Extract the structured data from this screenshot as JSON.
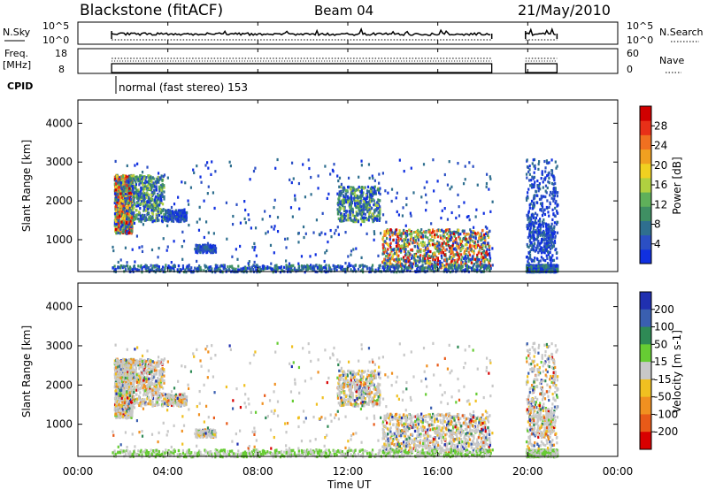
{
  "header": {
    "station": "Blackstone (fitACF)",
    "beam": "Beam 04",
    "date": "21/May/2010"
  },
  "meta_panels": {
    "nsky": {
      "label": "N.Sky",
      "ticks": [
        "10^5",
        "10^0"
      ],
      "right_ticks": [
        "10^5",
        "10^0"
      ],
      "right_label": "N.Search"
    },
    "freq": {
      "label_line1": "Freq.",
      "label_line2": "[MHz]",
      "ticks": [
        "18",
        "8"
      ],
      "right_ticks": [
        "60",
        "0"
      ],
      "right_label": "Nave"
    },
    "cpid": {
      "label": "CPID",
      "mode_text": "normal (fast stereo) 153"
    }
  },
  "chart_data": [
    {
      "type": "heatmap",
      "title": "",
      "xlabel": "Time UT",
      "ylabel": "Slant Range [km]",
      "xlim": [
        "00:00",
        "24:00"
      ],
      "ylim": [
        180,
        4600
      ],
      "x_ticks": [
        "00:00",
        "04:00",
        "08:00",
        "12:00",
        "16:00",
        "20:00",
        "00:00"
      ],
      "y_ticks": [
        1000,
        2000,
        3000,
        4000
      ],
      "colorbar": {
        "label": "Power [dB]",
        "ticks": [
          4,
          8,
          12,
          16,
          20,
          24,
          28
        ],
        "range": [
          0,
          32
        ],
        "colors": [
          "#1030e0",
          "#2b4fc4",
          "#2f6f8f",
          "#3f8f63",
          "#5fb05a",
          "#b0d040",
          "#f0d020",
          "#f0a020",
          "#f07020",
          "#e83018",
          "#d00000"
        ]
      },
      "data_coverage_ut_hours": [
        [
          1.5,
          18.4
        ],
        [
          19.9,
          21.3
        ]
      ],
      "echo_regions": [
        {
          "t": [
            1.6,
            2.4
          ],
          "range_km": [
            1200,
            2700
          ],
          "level": "strong"
        },
        {
          "t": [
            2.4,
            3.8
          ],
          "range_km": [
            1500,
            2700
          ],
          "level": "moderate"
        },
        {
          "t": [
            3.8,
            4.8
          ],
          "range_km": [
            1500,
            1800
          ],
          "level": "weak"
        },
        {
          "t": [
            5.2,
            6.1
          ],
          "range_km": [
            700,
            900
          ],
          "level": "weak"
        },
        {
          "t": [
            11.5,
            13.4
          ],
          "range_km": [
            1500,
            2400
          ],
          "level": "moderate"
        },
        {
          "t": [
            13.5,
            18.3
          ],
          "range_km": [
            300,
            1300
          ],
          "level": "strong"
        },
        {
          "t": [
            20.0,
            21.2
          ],
          "range_km": [
            700,
            1500
          ],
          "level": "weak"
        }
      ]
    },
    {
      "type": "heatmap",
      "title": "",
      "xlabel": "Time UT",
      "ylabel": "Slant Range [km]",
      "xlim": [
        "00:00",
        "24:00"
      ],
      "ylim": [
        180,
        4600
      ],
      "x_ticks": [
        "00:00",
        "04:00",
        "08:00",
        "12:00",
        "16:00",
        "20:00",
        "00:00"
      ],
      "y_ticks": [
        1000,
        2000,
        3000,
        4000
      ],
      "colorbar": {
        "label": "Velocity [m s-1]",
        "ticks": [
          200,
          100,
          50,
          15,
          -15,
          -50,
          -100,
          -200
        ],
        "colors": [
          "#2030b0",
          "#3a5fb0",
          "#2e8a55",
          "#66cc33",
          "#c8c8c8",
          "#f0c020",
          "#f09020",
          "#e85a18",
          "#d80000"
        ]
      },
      "data_coverage_ut_hours": [
        [
          1.5,
          18.4
        ],
        [
          19.9,
          21.3
        ]
      ]
    }
  ]
}
